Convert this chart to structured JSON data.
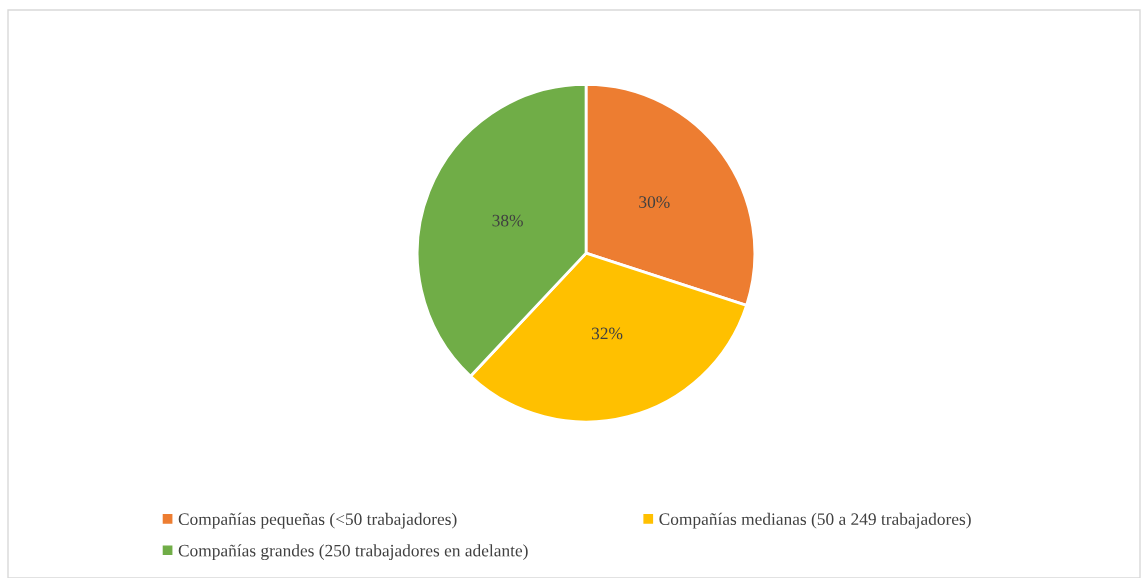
{
  "chart_data": {
    "type": "pie",
    "categories": [
      "Compañías pequeñas (<50 trabajadores)",
      "Compañías medianas (50 a 249 trabajadores)",
      "Compañías grandes (250 trabajadores en adelante)"
    ],
    "values": [
      30,
      32,
      38
    ],
    "colors": [
      "#ed7d31",
      "#ffc000",
      "#70ad47"
    ],
    "value_labels": [
      "30%",
      "32%",
      "38%"
    ],
    "legend": "bottom"
  }
}
